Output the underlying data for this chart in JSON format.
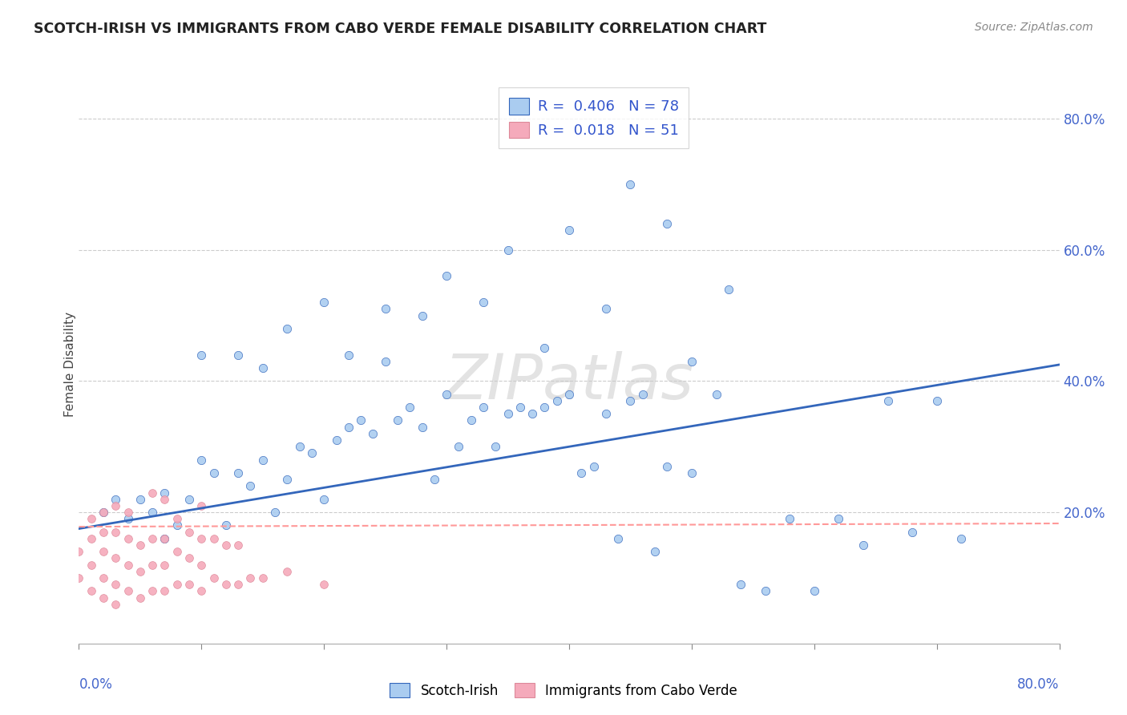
{
  "title": "SCOTCH-IRISH VS IMMIGRANTS FROM CABO VERDE FEMALE DISABILITY CORRELATION CHART",
  "source": "Source: ZipAtlas.com",
  "ylabel": "Female Disability",
  "x_min": 0.0,
  "x_max": 0.8,
  "y_min": 0.0,
  "y_max": 0.85,
  "background_color": "#ffffff",
  "grid_color": "#cccccc",
  "scotch_irish_color": "#aaccf0",
  "cabo_verde_color": "#f5aabb",
  "scotch_irish_line_color": "#3366bb",
  "cabo_verde_line_color": "#ff9999",
  "R_scotch": 0.406,
  "N_scotch": 78,
  "R_cabo": 0.018,
  "N_cabo": 51,
  "si_line_x0": 0.0,
  "si_line_y0": 0.175,
  "si_line_x1": 0.8,
  "si_line_y1": 0.425,
  "cv_line_x0": 0.0,
  "cv_line_y0": 0.178,
  "cv_line_x1": 0.8,
  "cv_line_y1": 0.183,
  "scotch_irish_x": [
    0.02,
    0.03,
    0.04,
    0.05,
    0.06,
    0.07,
    0.07,
    0.08,
    0.09,
    0.1,
    0.11,
    0.12,
    0.13,
    0.14,
    0.15,
    0.16,
    0.17,
    0.18,
    0.19,
    0.2,
    0.21,
    0.22,
    0.23,
    0.24,
    0.25,
    0.26,
    0.27,
    0.28,
    0.29,
    0.3,
    0.31,
    0.32,
    0.33,
    0.34,
    0.35,
    0.36,
    0.37,
    0.38,
    0.39,
    0.4,
    0.41,
    0.42,
    0.43,
    0.44,
    0.45,
    0.46,
    0.47,
    0.48,
    0.5,
    0.52,
    0.54,
    0.56,
    0.58,
    0.6,
    0.62,
    0.64,
    0.66,
    0.68,
    0.7,
    0.72,
    0.1,
    0.13,
    0.15,
    0.17,
    0.2,
    0.22,
    0.25,
    0.28,
    0.3,
    0.33,
    0.35,
    0.38,
    0.4,
    0.43,
    0.45,
    0.48,
    0.5,
    0.53
  ],
  "scotch_irish_y": [
    0.2,
    0.22,
    0.19,
    0.22,
    0.2,
    0.23,
    0.16,
    0.18,
    0.22,
    0.28,
    0.26,
    0.18,
    0.26,
    0.24,
    0.28,
    0.2,
    0.25,
    0.3,
    0.29,
    0.22,
    0.31,
    0.33,
    0.34,
    0.32,
    0.43,
    0.34,
    0.36,
    0.33,
    0.25,
    0.38,
    0.3,
    0.34,
    0.36,
    0.3,
    0.35,
    0.36,
    0.35,
    0.36,
    0.37,
    0.38,
    0.26,
    0.27,
    0.35,
    0.16,
    0.37,
    0.38,
    0.14,
    0.27,
    0.26,
    0.38,
    0.09,
    0.08,
    0.19,
    0.08,
    0.19,
    0.15,
    0.37,
    0.17,
    0.37,
    0.16,
    0.44,
    0.44,
    0.42,
    0.48,
    0.52,
    0.44,
    0.51,
    0.5,
    0.56,
    0.52,
    0.6,
    0.45,
    0.63,
    0.51,
    0.7,
    0.64,
    0.43,
    0.54
  ],
  "cabo_verde_x": [
    0.0,
    0.0,
    0.01,
    0.01,
    0.01,
    0.01,
    0.02,
    0.02,
    0.02,
    0.02,
    0.02,
    0.03,
    0.03,
    0.03,
    0.03,
    0.03,
    0.04,
    0.04,
    0.04,
    0.04,
    0.05,
    0.05,
    0.05,
    0.06,
    0.06,
    0.06,
    0.06,
    0.07,
    0.07,
    0.07,
    0.07,
    0.08,
    0.08,
    0.08,
    0.09,
    0.09,
    0.09,
    0.1,
    0.1,
    0.1,
    0.1,
    0.11,
    0.11,
    0.12,
    0.12,
    0.13,
    0.13,
    0.14,
    0.15,
    0.17,
    0.2
  ],
  "cabo_verde_y": [
    0.14,
    0.1,
    0.08,
    0.12,
    0.16,
    0.19,
    0.07,
    0.1,
    0.14,
    0.17,
    0.2,
    0.06,
    0.09,
    0.13,
    0.17,
    0.21,
    0.08,
    0.12,
    0.16,
    0.2,
    0.07,
    0.11,
    0.15,
    0.08,
    0.12,
    0.16,
    0.23,
    0.08,
    0.12,
    0.16,
    0.22,
    0.09,
    0.14,
    0.19,
    0.09,
    0.13,
    0.17,
    0.08,
    0.12,
    0.16,
    0.21,
    0.1,
    0.16,
    0.09,
    0.15,
    0.09,
    0.15,
    0.1,
    0.1,
    0.11,
    0.09
  ]
}
